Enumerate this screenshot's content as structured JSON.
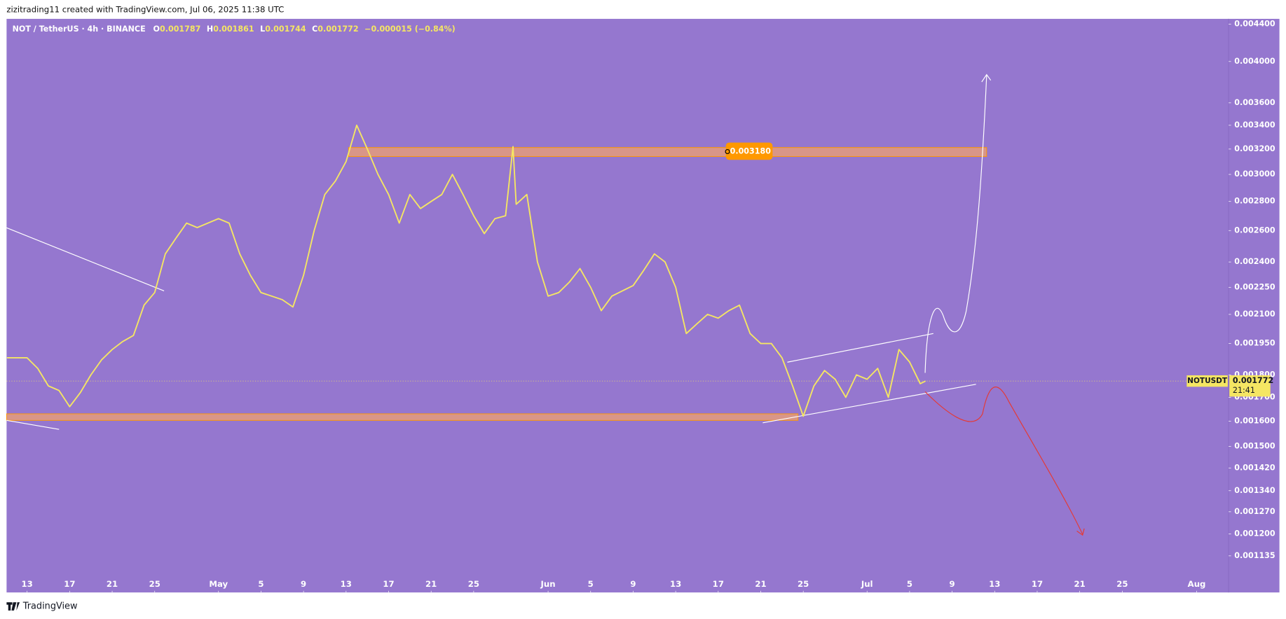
{
  "header": {
    "attribution": "zizitrading11 created with TradingView.com, Jul 06, 2025 11:38 UTC"
  },
  "footer": {
    "brand": "TradingView"
  },
  "chart_data": {
    "type": "line",
    "title": "NOT / TetherUS · 4h · BINANCE",
    "ohlc": {
      "open_label": "O",
      "open": "0.001787",
      "high_label": "H",
      "high": "0.001861",
      "low_label": "L",
      "low": "0.001744",
      "close_label": "C",
      "close": "0.001772",
      "change": "−0.000015 (−0.84%)"
    },
    "series": [
      {
        "name": "NOTUSDT",
        "color": "#f5e663",
        "x": [
          -1.9,
          0,
          1,
          2,
          3,
          4,
          5,
          6,
          7,
          8,
          9,
          10,
          11,
          12,
          13,
          14,
          15,
          16,
          17,
          18,
          19,
          20,
          21,
          22,
          23,
          24,
          25,
          26,
          27,
          28,
          29,
          30,
          31,
          32,
          33,
          34,
          35,
          36,
          37,
          38,
          39,
          40,
          41,
          42,
          43,
          44,
          45,
          45.7,
          46,
          47,
          48,
          49,
          50,
          51,
          52,
          53,
          54,
          55,
          56,
          57,
          58,
          59,
          60,
          61,
          62,
          63,
          64,
          65,
          66,
          67,
          68,
          69,
          70,
          71,
          72,
          73,
          74,
          75,
          76,
          77,
          78,
          79,
          80,
          81,
          82,
          83,
          84,
          84.5
        ],
        "values": [
          0.00188,
          0.00188,
          0.00183,
          0.00175,
          0.00173,
          0.00166,
          0.00172,
          0.0018,
          0.00187,
          0.00192,
          0.00196,
          0.00199,
          0.00215,
          0.00222,
          0.00245,
          0.00255,
          0.00265,
          0.00262,
          0.00265,
          0.00268,
          0.00265,
          0.00245,
          0.00232,
          0.00222,
          0.0022,
          0.00218,
          0.00214,
          0.00232,
          0.0026,
          0.00285,
          0.00295,
          0.0031,
          0.0034,
          0.0032,
          0.003,
          0.00285,
          0.00265,
          0.00285,
          0.00275,
          0.0028,
          0.00285,
          0.003,
          0.00285,
          0.0027,
          0.00258,
          0.00268,
          0.0027,
          0.00322,
          0.00278,
          0.00285,
          0.0024,
          0.0022,
          0.00222,
          0.00228,
          0.00236,
          0.00225,
          0.00212,
          0.0022,
          0.00223,
          0.00226,
          0.00235,
          0.00245,
          0.0024,
          0.00225,
          0.002,
          0.00205,
          0.0021,
          0.00208,
          0.00212,
          0.00215,
          0.002,
          0.00195,
          0.00195,
          0.00188,
          0.00175,
          0.00162,
          0.00175,
          0.00182,
          0.00178,
          0.0017,
          0.0018,
          0.00178,
          0.00183,
          0.0017,
          0.00192,
          0.00186,
          0.00176,
          0.001772
        ]
      }
    ],
    "log_scale": true,
    "grid": false,
    "xlim": [
      -1.93,
      113.0
    ],
    "xticks": [
      {
        "value": 0,
        "label": "13"
      },
      {
        "value": 4,
        "label": "17"
      },
      {
        "value": 8,
        "label": "21"
      },
      {
        "value": 12,
        "label": "25"
      },
      {
        "value": 18,
        "label": "May"
      },
      {
        "value": 22,
        "label": "5"
      },
      {
        "value": 26,
        "label": "9"
      },
      {
        "value": 30,
        "label": "13"
      },
      {
        "value": 34,
        "label": "17"
      },
      {
        "value": 38,
        "label": "21"
      },
      {
        "value": 42,
        "label": "25"
      },
      {
        "value": 49,
        "label": "Jun"
      },
      {
        "value": 53,
        "label": "5"
      },
      {
        "value": 57,
        "label": "9"
      },
      {
        "value": 61,
        "label": "13"
      },
      {
        "value": 65,
        "label": "17"
      },
      {
        "value": 69,
        "label": "21"
      },
      {
        "value": 73,
        "label": "25"
      },
      {
        "value": 79,
        "label": "Jul"
      },
      {
        "value": 83,
        "label": "5"
      },
      {
        "value": 87,
        "label": "9"
      },
      {
        "value": 91,
        "label": "13"
      },
      {
        "value": 95,
        "label": "17"
      },
      {
        "value": 99,
        "label": "21"
      },
      {
        "value": 103,
        "label": "25"
      },
      {
        "value": 110,
        "label": "Aug"
      }
    ],
    "ylim": [
      0.001034,
      0.004459
    ],
    "yticks": [
      {
        "value": 0.0044,
        "label": "0.004400"
      },
      {
        "value": 0.004,
        "label": "0.004000"
      },
      {
        "value": 0.0036,
        "label": "0.003600"
      },
      {
        "value": 0.0034,
        "label": "0.003400"
      },
      {
        "value": 0.0032,
        "label": "0.003200"
      },
      {
        "value": 0.003,
        "label": "0.003000"
      },
      {
        "value": 0.0028,
        "label": "0.002800"
      },
      {
        "value": 0.0026,
        "label": "0.002600"
      },
      {
        "value": 0.0024,
        "label": "0.002400"
      },
      {
        "value": 0.00225,
        "label": "0.002250"
      },
      {
        "value": 0.0021,
        "label": "0.002100"
      },
      {
        "value": 0.00195,
        "label": "0.001950"
      },
      {
        "value": 0.0018,
        "label": "0.001800"
      },
      {
        "value": 0.0017,
        "label": "0.001700"
      },
      {
        "value": 0.0016,
        "label": "0.001600"
      },
      {
        "value": 0.0015,
        "label": "0.001500"
      },
      {
        "value": 0.00142,
        "label": "0.001420"
      },
      {
        "value": 0.00134,
        "label": "0.001340"
      },
      {
        "value": 0.00127,
        "label": "0.001270"
      },
      {
        "value": 0.0012,
        "label": "0.001200"
      },
      {
        "value": 0.001135,
        "label": "0.001135"
      }
    ],
    "last_price": {
      "symbol": "NOTUSDT",
      "value": 0.001772,
      "countdown": "21:41"
    },
    "annotations": {
      "resistance_label": "0.003180"
    }
  }
}
